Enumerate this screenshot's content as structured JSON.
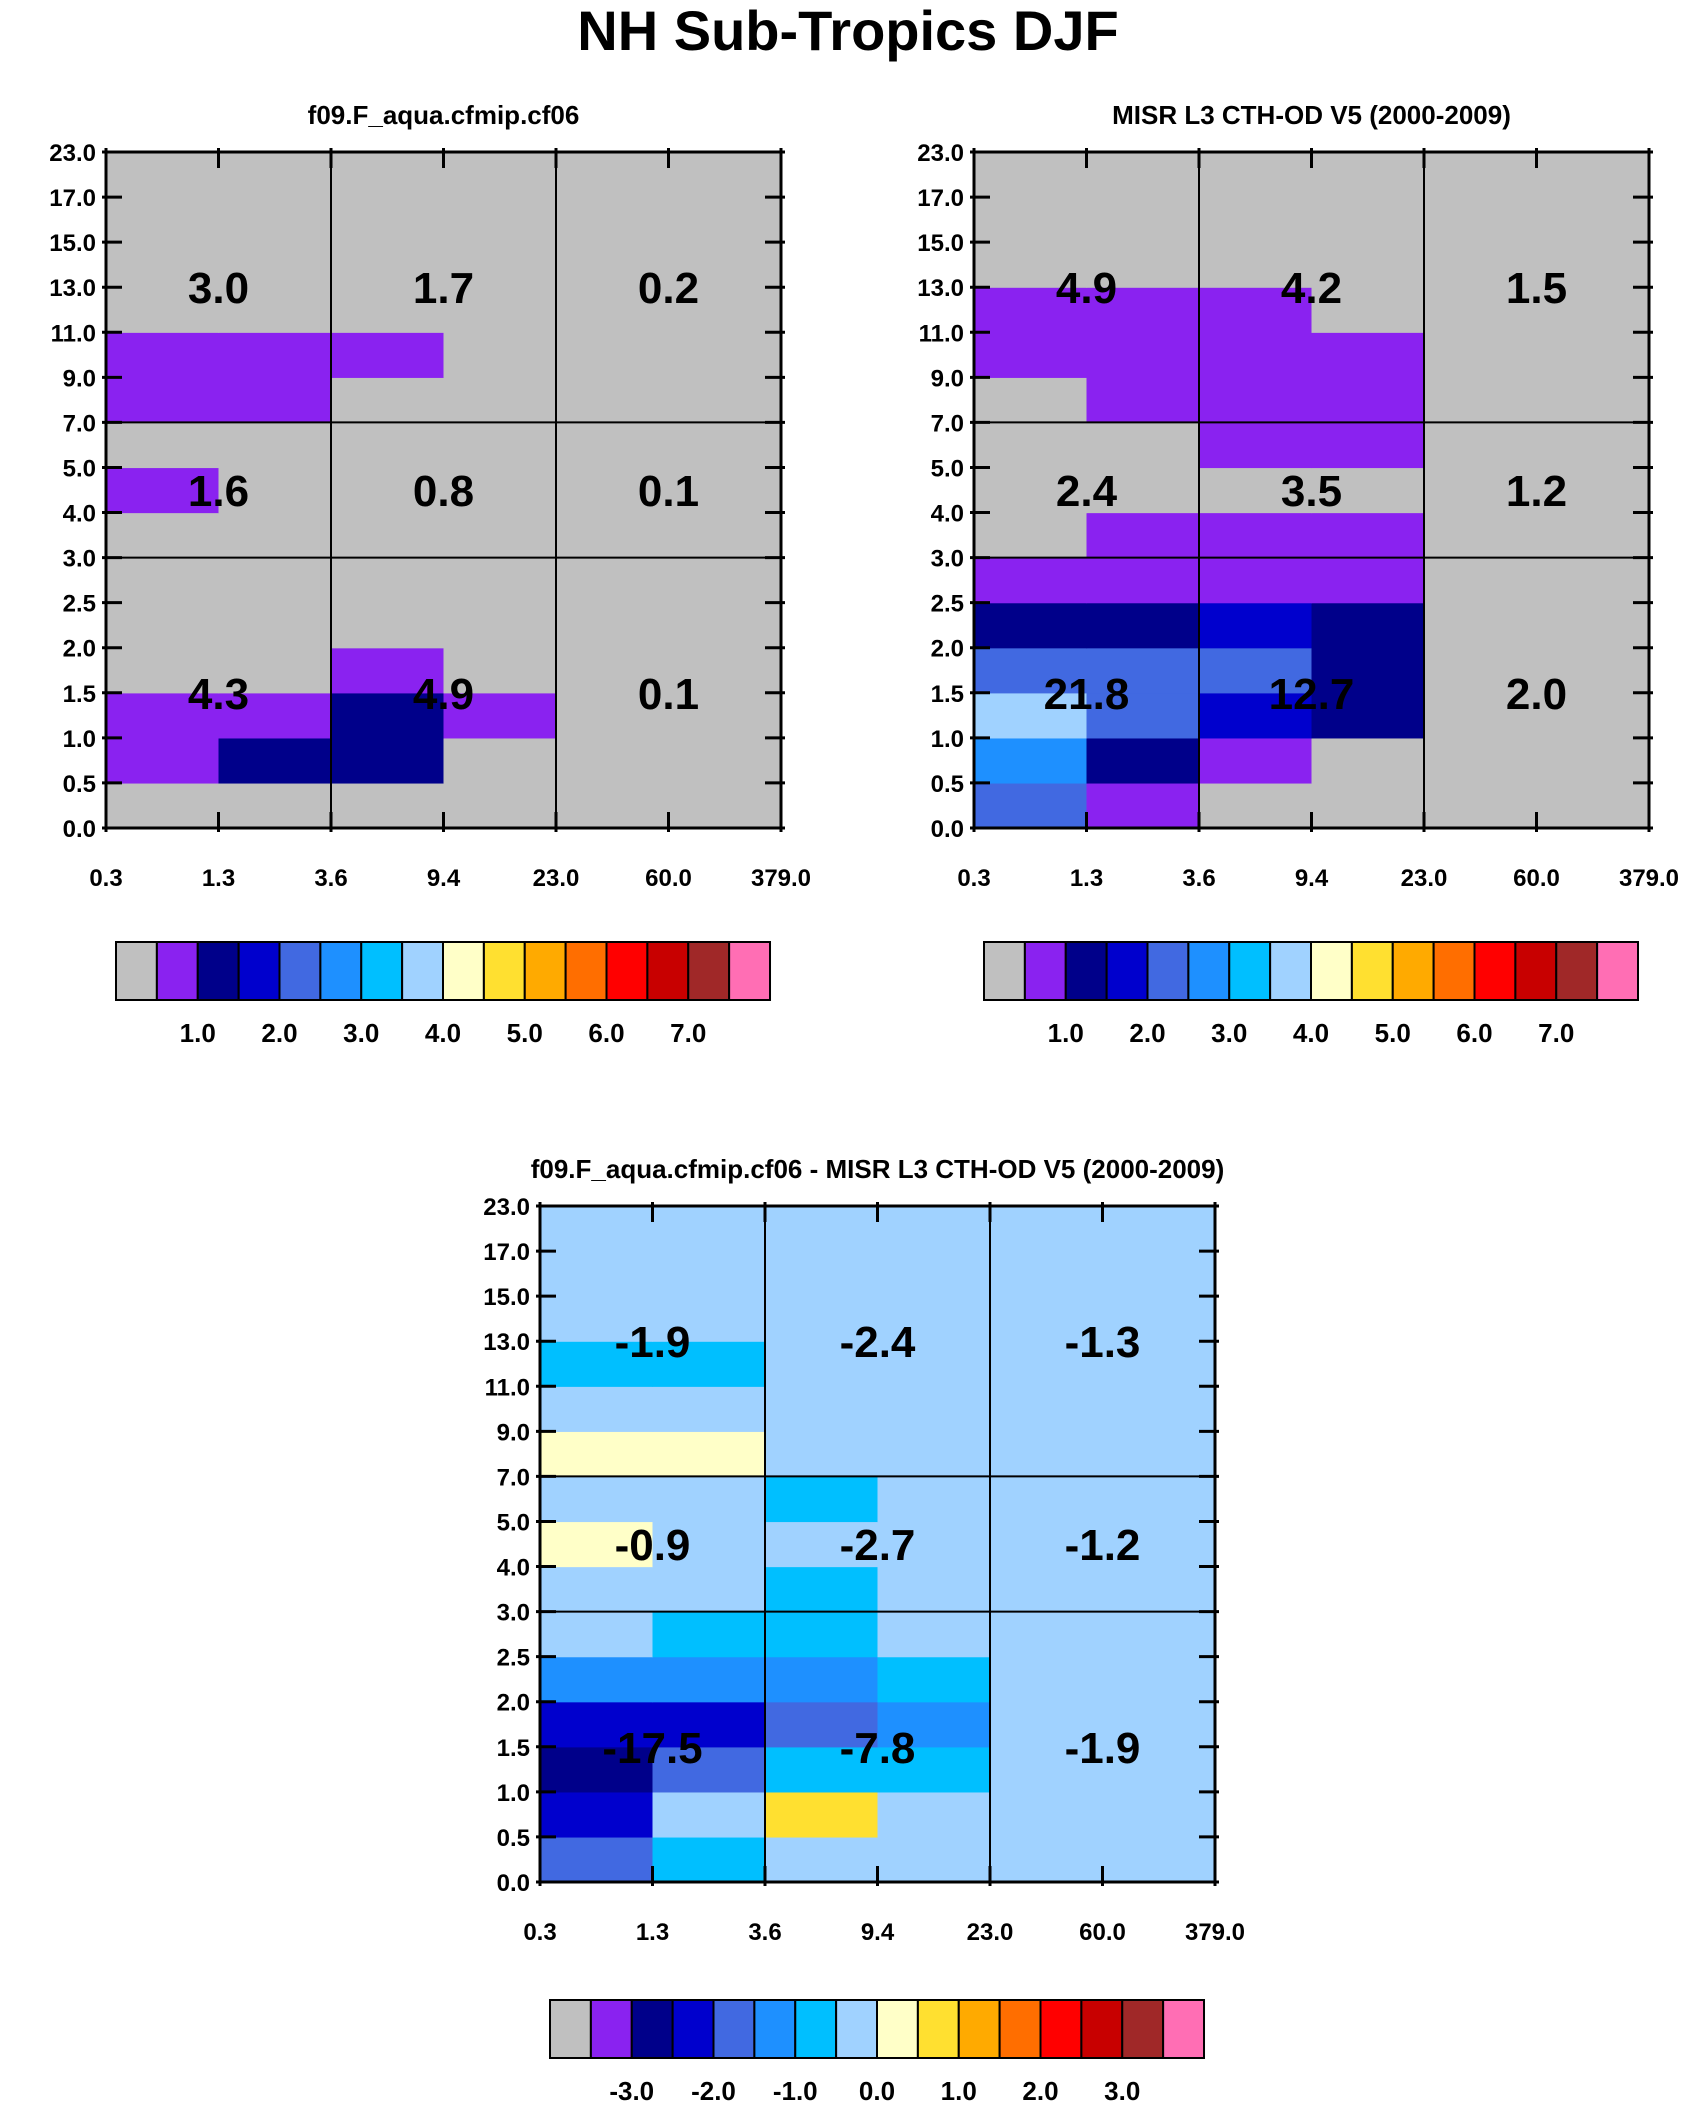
{
  "figure": {
    "title": "NH Sub-Tropics DJF"
  },
  "chart_data": [
    {
      "type": "heatmap",
      "title": "f09.F_aqua.cfmip.cf06",
      "x_edges": [
        "0.3",
        "1.3",
        "3.6",
        "9.4",
        "23.0",
        "60.0",
        "379.0"
      ],
      "y_edges": [
        "0.0",
        "0.5",
        "1.0",
        "1.5",
        "2.0",
        "2.5",
        "3.0",
        "4.0",
        "5.0",
        "7.0",
        "9.0",
        "11.0",
        "13.0",
        "15.0",
        "17.0",
        "23.0"
      ],
      "cells": [
        [
          "#c0c0c0",
          "#c0c0c0",
          "#c0c0c0",
          "#c0c0c0",
          "#c0c0c0",
          "#c0c0c0"
        ],
        [
          "#8a22f0",
          "#00008a",
          "#00008a",
          "#c0c0c0",
          "#c0c0c0",
          "#c0c0c0"
        ],
        [
          "#8a22f0",
          "#8a22f0",
          "#00008a",
          "#8a22f0",
          "#c0c0c0",
          "#c0c0c0"
        ],
        [
          "#c0c0c0",
          "#c0c0c0",
          "#8a22f0",
          "#c0c0c0",
          "#c0c0c0",
          "#c0c0c0"
        ],
        [
          "#c0c0c0",
          "#c0c0c0",
          "#c0c0c0",
          "#c0c0c0",
          "#c0c0c0",
          "#c0c0c0"
        ],
        [
          "#c0c0c0",
          "#c0c0c0",
          "#c0c0c0",
          "#c0c0c0",
          "#c0c0c0",
          "#c0c0c0"
        ],
        [
          "#c0c0c0",
          "#c0c0c0",
          "#c0c0c0",
          "#c0c0c0",
          "#c0c0c0",
          "#c0c0c0"
        ],
        [
          "#8a22f0",
          "#c0c0c0",
          "#c0c0c0",
          "#c0c0c0",
          "#c0c0c0",
          "#c0c0c0"
        ],
        [
          "#c0c0c0",
          "#c0c0c0",
          "#c0c0c0",
          "#c0c0c0",
          "#c0c0c0",
          "#c0c0c0"
        ],
        [
          "#8a22f0",
          "#8a22f0",
          "#c0c0c0",
          "#c0c0c0",
          "#c0c0c0",
          "#c0c0c0"
        ],
        [
          "#8a22f0",
          "#8a22f0",
          "#8a22f0",
          "#c0c0c0",
          "#c0c0c0",
          "#c0c0c0"
        ],
        [
          "#c0c0c0",
          "#c0c0c0",
          "#c0c0c0",
          "#c0c0c0",
          "#c0c0c0",
          "#c0c0c0"
        ],
        [
          "#c0c0c0",
          "#c0c0c0",
          "#c0c0c0",
          "#c0c0c0",
          "#c0c0c0",
          "#c0c0c0"
        ],
        [
          "#c0c0c0",
          "#c0c0c0",
          "#c0c0c0",
          "#c0c0c0",
          "#c0c0c0",
          "#c0c0c0"
        ],
        [
          "#c0c0c0",
          "#c0c0c0",
          "#c0c0c0",
          "#c0c0c0",
          "#c0c0c0",
          "#c0c0c0"
        ]
      ],
      "group_values": [
        [
          "4.3",
          "4.9",
          "0.1"
        ],
        [
          "1.6",
          "0.8",
          "0.1"
        ],
        [
          "3.0",
          "1.7",
          "0.2"
        ]
      ],
      "colorbar": [
        "#c0c0c0",
        "#8a22f0",
        "#00008a",
        "#0000cd",
        "#4169e1",
        "#1e90ff",
        "#00bfff",
        "#a0d2ff",
        "#ffffc8",
        "#ffe030",
        "#ffaa00",
        "#ff6e00",
        "#ff0000",
        "#c80000",
        "#a02828",
        "#ff6eb4"
      ],
      "colorbar_labels": [
        "1.0",
        "2.0",
        "3.0",
        "4.0",
        "5.0",
        "6.0",
        "7.0"
      ]
    },
    {
      "type": "heatmap",
      "title": "MISR L3 CTH-OD V5 (2000-2009)",
      "x_edges": [
        "0.3",
        "1.3",
        "3.6",
        "9.4",
        "23.0",
        "60.0",
        "379.0"
      ],
      "y_edges": [
        "0.0",
        "0.5",
        "1.0",
        "1.5",
        "2.0",
        "2.5",
        "3.0",
        "4.0",
        "5.0",
        "7.0",
        "9.0",
        "11.0",
        "13.0",
        "15.0",
        "17.0",
        "23.0"
      ],
      "cells": [
        [
          "#4169e1",
          "#8a22f0",
          "#c0c0c0",
          "#c0c0c0",
          "#c0c0c0",
          "#c0c0c0"
        ],
        [
          "#1e90ff",
          "#00008a",
          "#8a22f0",
          "#c0c0c0",
          "#c0c0c0",
          "#c0c0c0"
        ],
        [
          "#a0d2ff",
          "#4169e1",
          "#0000cd",
          "#00008a",
          "#c0c0c0",
          "#c0c0c0"
        ],
        [
          "#4169e1",
          "#4169e1",
          "#4169e1",
          "#00008a",
          "#c0c0c0",
          "#c0c0c0"
        ],
        [
          "#00008a",
          "#00008a",
          "#0000cd",
          "#00008a",
          "#c0c0c0",
          "#c0c0c0"
        ],
        [
          "#8a22f0",
          "#8a22f0",
          "#8a22f0",
          "#8a22f0",
          "#c0c0c0",
          "#c0c0c0"
        ],
        [
          "#c0c0c0",
          "#8a22f0",
          "#8a22f0",
          "#8a22f0",
          "#c0c0c0",
          "#c0c0c0"
        ],
        [
          "#c0c0c0",
          "#c0c0c0",
          "#c0c0c0",
          "#c0c0c0",
          "#c0c0c0",
          "#c0c0c0"
        ],
        [
          "#c0c0c0",
          "#c0c0c0",
          "#8a22f0",
          "#8a22f0",
          "#c0c0c0",
          "#c0c0c0"
        ],
        [
          "#c0c0c0",
          "#8a22f0",
          "#8a22f0",
          "#8a22f0",
          "#c0c0c0",
          "#c0c0c0"
        ],
        [
          "#8a22f0",
          "#8a22f0",
          "#8a22f0",
          "#8a22f0",
          "#c0c0c0",
          "#c0c0c0"
        ],
        [
          "#8a22f0",
          "#8a22f0",
          "#8a22f0",
          "#c0c0c0",
          "#c0c0c0",
          "#c0c0c0"
        ],
        [
          "#c0c0c0",
          "#c0c0c0",
          "#c0c0c0",
          "#c0c0c0",
          "#c0c0c0",
          "#c0c0c0"
        ],
        [
          "#c0c0c0",
          "#c0c0c0",
          "#c0c0c0",
          "#c0c0c0",
          "#c0c0c0",
          "#c0c0c0"
        ],
        [
          "#c0c0c0",
          "#c0c0c0",
          "#c0c0c0",
          "#c0c0c0",
          "#c0c0c0",
          "#c0c0c0"
        ]
      ],
      "group_values": [
        [
          "21.8",
          "12.7",
          "2.0"
        ],
        [
          "2.4",
          "3.5",
          "1.2"
        ],
        [
          "4.9",
          "4.2",
          "1.5"
        ]
      ],
      "colorbar": [
        "#c0c0c0",
        "#8a22f0",
        "#00008a",
        "#0000cd",
        "#4169e1",
        "#1e90ff",
        "#00bfff",
        "#a0d2ff",
        "#ffffc8",
        "#ffe030",
        "#ffaa00",
        "#ff6e00",
        "#ff0000",
        "#c80000",
        "#a02828",
        "#ff6eb4"
      ],
      "colorbar_labels": [
        "1.0",
        "2.0",
        "3.0",
        "4.0",
        "5.0",
        "6.0",
        "7.0"
      ]
    },
    {
      "type": "heatmap",
      "title": "f09.F_aqua.cfmip.cf06 - MISR L3 CTH-OD V5 (2000-2009)",
      "x_edges": [
        "0.3",
        "1.3",
        "3.6",
        "9.4",
        "23.0",
        "60.0",
        "379.0"
      ],
      "y_edges": [
        "0.0",
        "0.5",
        "1.0",
        "1.5",
        "2.0",
        "2.5",
        "3.0",
        "4.0",
        "5.0",
        "7.0",
        "9.0",
        "11.0",
        "13.0",
        "15.0",
        "17.0",
        "23.0"
      ],
      "cells": [
        [
          "#4169e1",
          "#00bfff",
          "#a0d2ff",
          "#a0d2ff",
          "#a0d2ff",
          "#a0d2ff"
        ],
        [
          "#0000cd",
          "#a0d2ff",
          "#ffe030",
          "#a0d2ff",
          "#a0d2ff",
          "#a0d2ff"
        ],
        [
          "#00008a",
          "#4169e1",
          "#00bfff",
          "#00bfff",
          "#a0d2ff",
          "#a0d2ff"
        ],
        [
          "#0000cd",
          "#0000cd",
          "#4169e1",
          "#1e90ff",
          "#a0d2ff",
          "#a0d2ff"
        ],
        [
          "#1e90ff",
          "#1e90ff",
          "#1e90ff",
          "#00bfff",
          "#a0d2ff",
          "#a0d2ff"
        ],
        [
          "#a0d2ff",
          "#00bfff",
          "#00bfff",
          "#a0d2ff",
          "#a0d2ff",
          "#a0d2ff"
        ],
        [
          "#a0d2ff",
          "#a0d2ff",
          "#00bfff",
          "#a0d2ff",
          "#a0d2ff",
          "#a0d2ff"
        ],
        [
          "#ffffc8",
          "#a0d2ff",
          "#a0d2ff",
          "#a0d2ff",
          "#a0d2ff",
          "#a0d2ff"
        ],
        [
          "#a0d2ff",
          "#a0d2ff",
          "#00bfff",
          "#a0d2ff",
          "#a0d2ff",
          "#a0d2ff"
        ],
        [
          "#ffffc8",
          "#ffffc8",
          "#a0d2ff",
          "#a0d2ff",
          "#a0d2ff",
          "#a0d2ff"
        ],
        [
          "#a0d2ff",
          "#a0d2ff",
          "#a0d2ff",
          "#a0d2ff",
          "#a0d2ff",
          "#a0d2ff"
        ],
        [
          "#00bfff",
          "#00bfff",
          "#a0d2ff",
          "#a0d2ff",
          "#a0d2ff",
          "#a0d2ff"
        ],
        [
          "#a0d2ff",
          "#a0d2ff",
          "#a0d2ff",
          "#a0d2ff",
          "#a0d2ff",
          "#a0d2ff"
        ],
        [
          "#a0d2ff",
          "#a0d2ff",
          "#a0d2ff",
          "#a0d2ff",
          "#a0d2ff",
          "#a0d2ff"
        ],
        [
          "#a0d2ff",
          "#a0d2ff",
          "#a0d2ff",
          "#a0d2ff",
          "#a0d2ff",
          "#a0d2ff"
        ]
      ],
      "group_values": [
        [
          "-17.5",
          "-7.8",
          "-1.9"
        ],
        [
          "-0.9",
          "-2.7",
          "-1.2"
        ],
        [
          "-1.9",
          "-2.4",
          "-1.3"
        ]
      ],
      "colorbar": [
        "#c0c0c0",
        "#8a22f0",
        "#00008a",
        "#0000cd",
        "#4169e1",
        "#1e90ff",
        "#00bfff",
        "#a0d2ff",
        "#ffffc8",
        "#ffe030",
        "#ffaa00",
        "#ff6e00",
        "#ff0000",
        "#c80000",
        "#a02828",
        "#ff6eb4"
      ],
      "colorbar_labels": [
        "-3.0",
        "-2.0",
        "-1.0",
        "0.0",
        "1.0",
        "2.0",
        "3.0"
      ]
    }
  ]
}
